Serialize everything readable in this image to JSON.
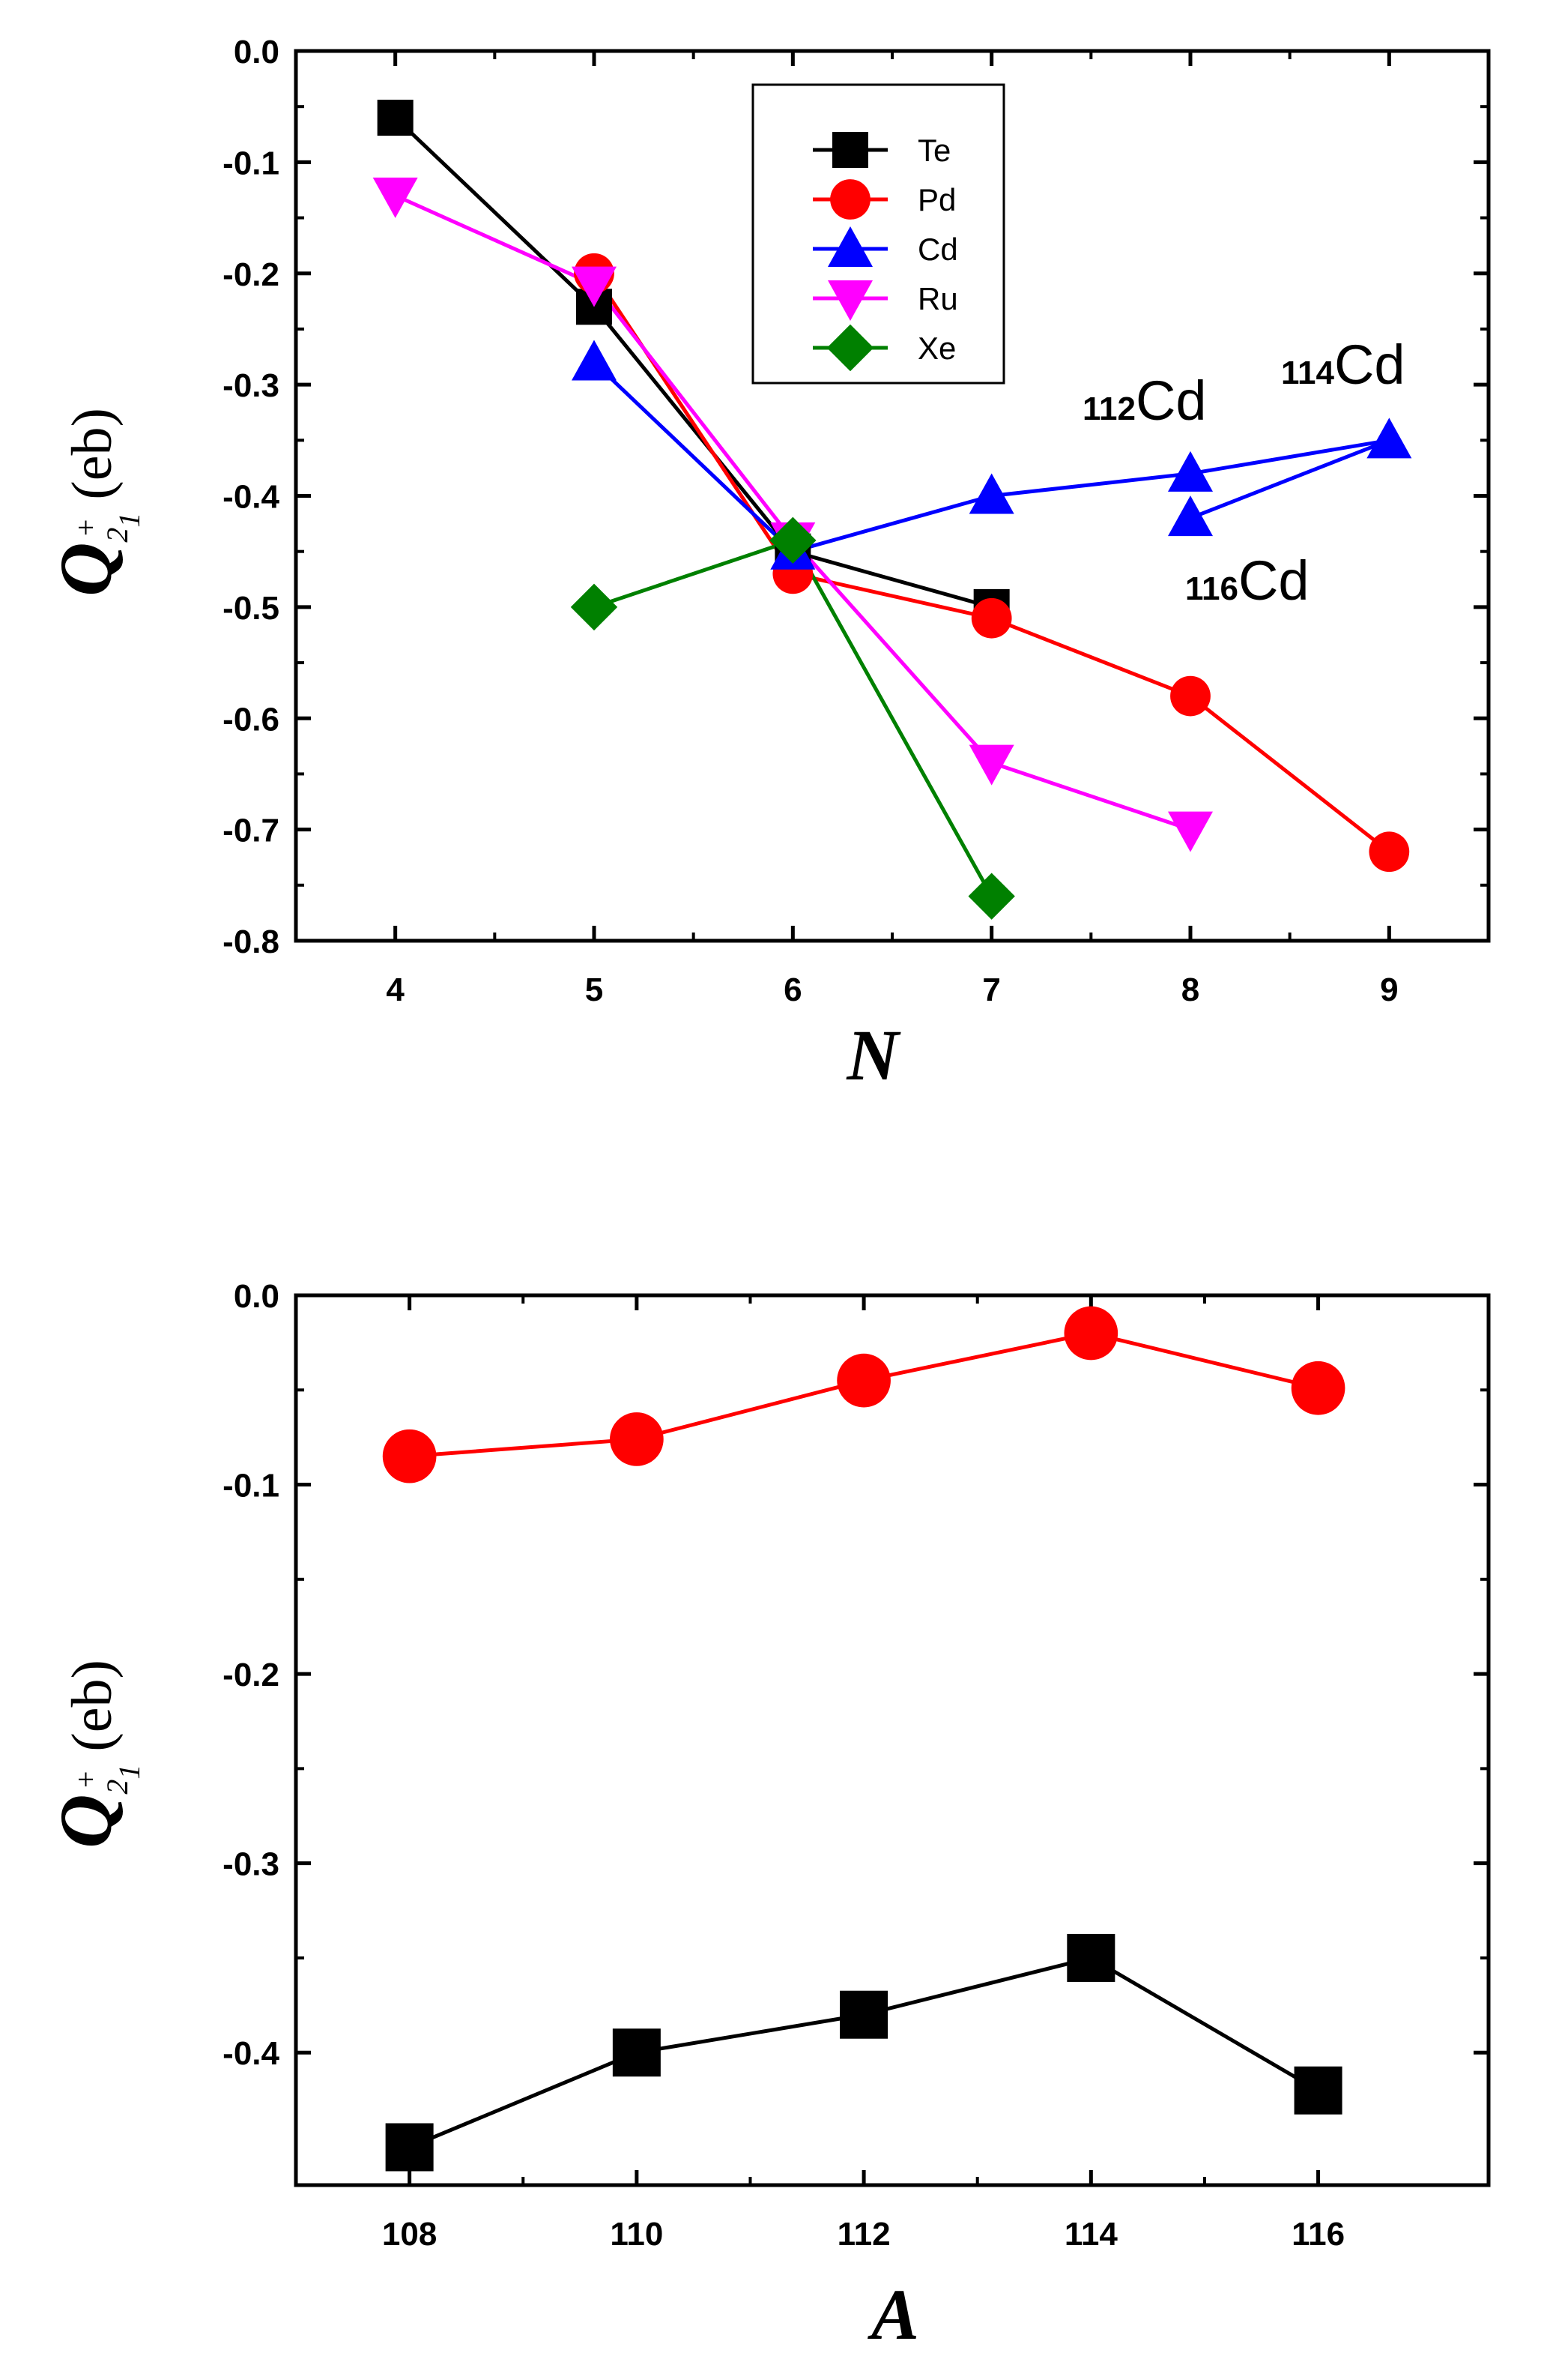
{
  "chart_data": [
    {
      "type": "line",
      "xlabel": "N",
      "ylabel": {
        "symbol": "Q",
        "sub": "2",
        "sup": "+",
        "subsub": "1",
        "unit": "(eb)"
      },
      "xlim": [
        3.5,
        9.5
      ],
      "ylim": [
        -0.8,
        0.0
      ],
      "xticks": [
        4,
        5,
        6,
        7,
        8,
        9
      ],
      "yticks": [
        0.0,
        -0.1,
        -0.2,
        -0.3,
        -0.4,
        -0.5,
        -0.6,
        -0.7,
        -0.8
      ],
      "yticklabels": [
        "0.0",
        "-0.1",
        "-0.2",
        "-0.3",
        "-0.4",
        "-0.5",
        "-0.6",
        "-0.7",
        "-0.8"
      ],
      "legend": "top-center",
      "series": [
        {
          "name": "Te",
          "color": "#000000",
          "marker": "square",
          "x": [
            4,
            5,
            6,
            7
          ],
          "y": [
            -0.06,
            -0.23,
            -0.45,
            -0.5
          ]
        },
        {
          "name": "Pd",
          "color": "#ff0000",
          "marker": "circle",
          "x": [
            5,
            6,
            7,
            8,
            9
          ],
          "y": [
            -0.2,
            -0.47,
            -0.51,
            -0.58,
            -0.72
          ]
        },
        {
          "name": "Cd",
          "color": "#0000ff",
          "marker": "triangle-up",
          "x": [
            5,
            6,
            7,
            8,
            9,
            8
          ],
          "y": [
            -0.28,
            -0.45,
            -0.4,
            -0.38,
            -0.35,
            -0.42
          ]
        },
        {
          "name": "Ru",
          "color": "#ff00ff",
          "marker": "triangle-down",
          "x": [
            4,
            5,
            6,
            7,
            8
          ],
          "y": [
            -0.13,
            -0.21,
            -0.44,
            -0.64,
            -0.7
          ]
        },
        {
          "name": "Xe",
          "color": "#008000",
          "marker": "diamond",
          "x": [
            5,
            6,
            7
          ],
          "y": [
            -0.5,
            -0.44,
            -0.76
          ]
        }
      ],
      "annotations": [
        {
          "mass": "112",
          "element": "Cd",
          "x": 8,
          "y": -0.38
        },
        {
          "mass": "114",
          "element": "Cd",
          "x": 9,
          "y": -0.35
        },
        {
          "mass": "116",
          "element": "Cd",
          "x": 8,
          "y": -0.42
        }
      ]
    },
    {
      "type": "line",
      "xlabel": "A",
      "ylabel": {
        "symbol": "Q",
        "sub": "2",
        "sup": "+",
        "subsub": "1",
        "unit": "(eb)"
      },
      "xlim": [
        107,
        117.5
      ],
      "ylim": [
        -0.47,
        0.0
      ],
      "xticks": [
        108,
        110,
        112,
        114,
        116
      ],
      "yticks": [
        0.0,
        -0.1,
        -0.2,
        -0.3,
        -0.4
      ],
      "yticklabels": [
        "0.0",
        "-0.1",
        "-0.2",
        "-0.3",
        "-0.4"
      ],
      "series": [
        {
          "name": "red",
          "color": "#ff0000",
          "marker": "circle",
          "x": [
            108,
            110,
            112,
            114,
            116
          ],
          "y": [
            -0.085,
            -0.076,
            -0.045,
            -0.02,
            -0.049
          ]
        },
        {
          "name": "black",
          "color": "#000000",
          "marker": "square",
          "x": [
            108,
            110,
            112,
            114,
            116
          ],
          "y": [
            -0.45,
            -0.4,
            -0.38,
            -0.35,
            -0.42
          ]
        }
      ]
    }
  ]
}
